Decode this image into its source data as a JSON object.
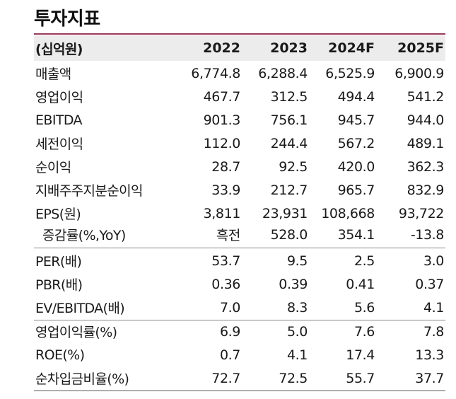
{
  "title": "투자지표",
  "header": {
    "unit": "(십억원)",
    "years": [
      "2022",
      "2023",
      "2024F",
      "2025F"
    ]
  },
  "rows": [
    {
      "label": "매출액",
      "values": [
        "6,774.8",
        "6,288.4",
        "6,525.9",
        "6,900.9"
      ]
    },
    {
      "label": "영업이익",
      "values": [
        "467.7",
        "312.5",
        "494.4",
        "541.2"
      ]
    },
    {
      "label": "EBITDA",
      "values": [
        "901.3",
        "756.1",
        "945.7",
        "944.0"
      ]
    },
    {
      "label": "세전이익",
      "values": [
        "112.0",
        "244.4",
        "567.2",
        "489.1"
      ]
    },
    {
      "label": "순이익",
      "values": [
        "28.7",
        "92.5",
        "420.0",
        "362.3"
      ]
    },
    {
      "label": "지배주주지분순이익",
      "values": [
        "33.9",
        "212.7",
        "965.7",
        "832.9"
      ]
    },
    {
      "label": "EPS(원)",
      "values": [
        "3,811",
        "23,931",
        "108,668",
        "93,722"
      ]
    },
    {
      "label": "증감률(%,YoY)",
      "values": [
        "흑전",
        "528.0",
        "354.1",
        "-13.8"
      ]
    },
    {
      "label": "PER(배)",
      "values": [
        "53.7",
        "9.5",
        "2.5",
        "3.0"
      ]
    },
    {
      "label": "PBR(배)",
      "values": [
        "0.36",
        "0.39",
        "0.41",
        "0.37"
      ]
    },
    {
      "label": "EV/EBITDA(배)",
      "values": [
        "7.0",
        "8.3",
        "5.6",
        "4.1"
      ]
    },
    {
      "label": "영업이익률(%)",
      "values": [
        "6.9",
        "5.0",
        "7.6",
        "7.8"
      ]
    },
    {
      "label": "ROE(%)",
      "values": [
        "0.7",
        "4.1",
        "17.4",
        "13.3"
      ]
    },
    {
      "label": "순차입금비율(%)",
      "values": [
        "72.7",
        "72.5",
        "55.7",
        "37.7"
      ]
    }
  ]
}
